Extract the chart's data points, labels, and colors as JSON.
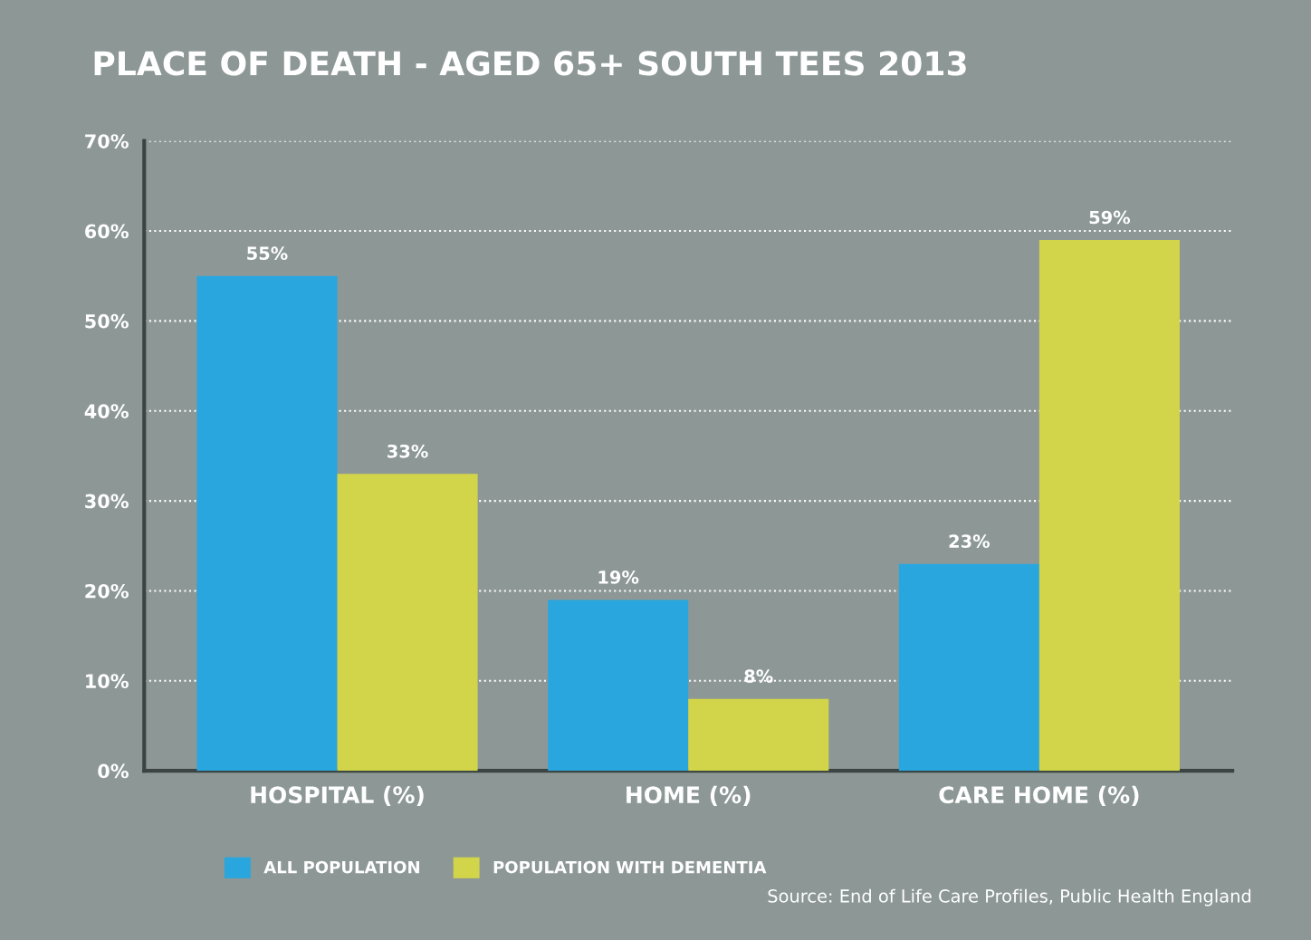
{
  "chart_data": {
    "type": "bar",
    "title": "PLACE OF DEATH - AGED 65+ SOUTH TEES 2013",
    "categories": [
      "HOSPITAL (%)",
      "HOME (%)",
      "CARE HOME (%)"
    ],
    "series": [
      {
        "name": "ALL POPULATION",
        "color": "#29a6de",
        "values": [
          55,
          19,
          23
        ],
        "value_labels": [
          "55%",
          "19%",
          "23%"
        ]
      },
      {
        "name": "POPULATION WITH DEMENTIA",
        "color": "#d2d44a",
        "values": [
          33,
          8,
          59
        ],
        "value_labels": [
          "33%",
          "8%",
          "59%"
        ]
      }
    ],
    "ylim": [
      0,
      70
    ],
    "yticks": [
      {
        "value": 0,
        "label": "0%"
      },
      {
        "value": 10,
        "label": "10%"
      },
      {
        "value": 20,
        "label": "20%"
      },
      {
        "value": 30,
        "label": "30%"
      },
      {
        "value": 40,
        "label": "40%"
      },
      {
        "value": 50,
        "label": "50%"
      },
      {
        "value": 60,
        "label": "60%"
      },
      {
        "value": 70,
        "label": "70%"
      }
    ],
    "grid": "y",
    "line_style": "dotted",
    "legend": "bottom left",
    "annotations": [
      "Source: End of Life Care Profiles, Public Health England"
    ]
  }
}
